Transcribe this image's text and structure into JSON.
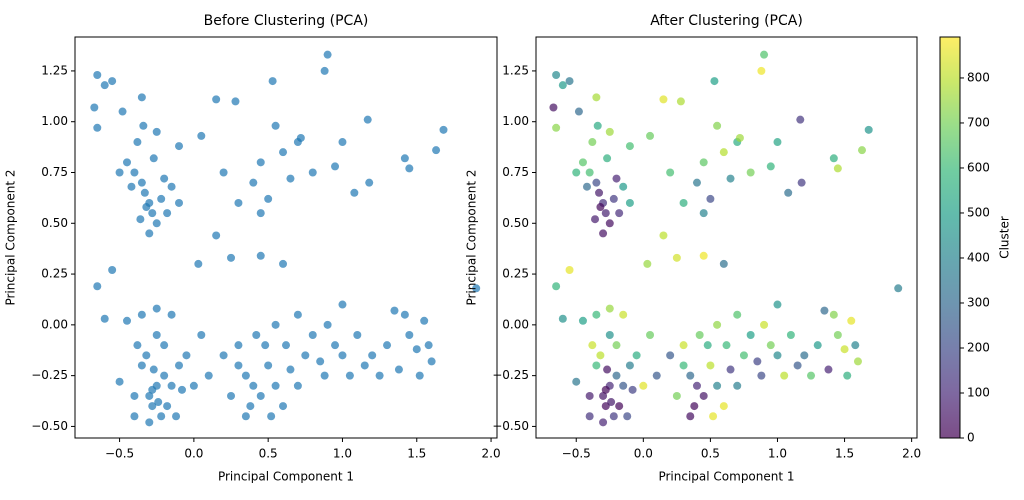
{
  "chart_data": [
    {
      "type": "scatter",
      "title": "Before Clustering (PCA)",
      "x_label": "Principal Component 1",
      "y_label": "Principal Component 2",
      "color": "#1f77b4",
      "xlim": [
        -0.8,
        2.04
      ],
      "ylim": [
        -0.557,
        1.417
      ],
      "xticks": [
        {
          "value": -0.5,
          "label": "−0.5"
        },
        {
          "value": 0,
          "label": "0.0"
        },
        0.5,
        {
          "value": 1,
          "label": "1.0"
        },
        1.5,
        {
          "value": 2,
          "label": "2.0"
        }
      ],
      "yticks": [
        {
          "value": -0.5,
          "label": "−0.50"
        },
        {
          "value": -0.25,
          "label": "−0.25"
        },
        {
          "value": 0,
          "label": "0.00"
        },
        0.25,
        {
          "value": 0.5,
          "label": "0.50"
        },
        0.75,
        {
          "value": 1,
          "label": "1.00"
        },
        1.25
      ],
      "x": [
        -0.3,
        -0.28,
        -0.33,
        -0.25,
        -0.35,
        -0.22,
        -0.3,
        -0.4,
        -0.45,
        -0.38,
        -0.2,
        -0.27,
        -0.32,
        -0.36,
        -0.18,
        -0.42,
        -0.5,
        -0.15,
        -0.25,
        -0.34,
        -0.65,
        -0.6,
        -0.55,
        -0.67,
        -0.65,
        -0.48,
        -0.35,
        -0.1,
        0.05,
        0.15,
        0.28,
        0.45,
        0.55,
        0.6,
        0.4,
        0.5,
        0.3,
        0.45,
        0.7,
        0.8,
        0.88,
        0.9,
        0.95,
        1.0,
        1.08,
        1.17,
        1.42,
        1.45,
        1.63,
        1.68,
        0.53,
        0.03,
        0.15,
        0.25,
        0.45,
        0.6,
        -0.1,
        0.2,
        0.65,
        1.18,
        0.72,
        -0.25,
        -0.3,
        -0.2,
        -0.28,
        -0.22,
        -0.35,
        -0.15,
        -0.32,
        -0.25,
        -0.4,
        -0.18,
        -0.1,
        -0.27,
        -0.38,
        -0.45,
        -0.3,
        -0.2,
        -0.05,
        0.0,
        -0.12,
        -0.4,
        -0.5,
        -0.35,
        -0.25,
        -0.15,
        -0.6,
        -0.65,
        -0.55,
        -0.28,
        -0.24,
        0.05,
        0.1,
        -0.08,
        0.35,
        0.4,
        0.3,
        0.45,
        0.5,
        0.38,
        0.55,
        0.25,
        0.3,
        0.48,
        0.6,
        0.2,
        0.65,
        0.42,
        0.7,
        0.75,
        0.8,
        0.88,
        0.95,
        1.0,
        1.05,
        1.1,
        1.2,
        1.25,
        1.3,
        1.38,
        1.42,
        1.5,
        1.58,
        1.6,
        1.52,
        1.35,
        1.0,
        0.9,
        0.7,
        0.55,
        1.55,
        1.9,
        0.35,
        0.52,
        1.45,
        0.85,
        0.62,
        1.15
      ],
      "values": [
        0.6,
        0.55,
        0.65,
        0.5,
        0.7,
        0.62,
        0.45,
        0.75,
        0.8,
        0.9,
        0.72,
        0.82,
        0.58,
        0.52,
        0.55,
        0.68,
        0.75,
        0.68,
        0.95,
        0.98,
        1.23,
        1.18,
        1.2,
        1.07,
        0.97,
        1.05,
        1.12,
        0.88,
        0.93,
        1.11,
        1.1,
        0.8,
        0.98,
        0.85,
        0.7,
        0.62,
        0.6,
        0.55,
        0.9,
        0.75,
        1.25,
        1.33,
        0.78,
        0.9,
        0.65,
        1.01,
        0.82,
        0.77,
        0.86,
        0.96,
        1.2,
        0.3,
        0.44,
        0.33,
        0.34,
        0.3,
        0.6,
        0.75,
        0.72,
        0.7,
        0.92,
        -0.3,
        -0.35,
        -0.25,
        -0.4,
        -0.45,
        -0.2,
        -0.3,
        -0.15,
        -0.05,
        -0.35,
        -0.4,
        -0.2,
        -0.22,
        -0.1,
        0.02,
        -0.48,
        -0.1,
        -0.15,
        -0.3,
        -0.45,
        -0.45,
        -0.28,
        0.05,
        0.08,
        0.05,
        0.03,
        0.19,
        0.27,
        -0.32,
        -0.38,
        -0.05,
        -0.25,
        -0.32,
        -0.25,
        -0.3,
        -0.2,
        -0.35,
        -0.2,
        -0.4,
        -0.3,
        -0.35,
        -0.1,
        -0.1,
        -0.4,
        -0.15,
        -0.22,
        -0.05,
        -0.3,
        -0.15,
        -0.05,
        -0.25,
        -0.1,
        -0.15,
        -0.25,
        -0.05,
        -0.15,
        -0.25,
        -0.1,
        -0.22,
        0.05,
        -0.12,
        -0.1,
        -0.18,
        -0.25,
        0.07,
        0.1,
        0.0,
        0.05,
        0.0,
        0.02,
        0.18,
        -0.45,
        -0.45,
        -0.05,
        -0.18,
        -0.1,
        -0.2
      ]
    },
    {
      "type": "scatter",
      "title": "After Clustering (PCA)",
      "x_label": "Principal Component 1",
      "y_label": "Principal Component 2",
      "colormap": "viridis",
      "colorbar_label": "Cluster",
      "clim": [
        0,
        891
      ],
      "cticks": [
        0,
        100,
        200,
        300,
        400,
        500,
        600,
        700,
        800
      ],
      "xlim": [
        -0.8,
        2.04
      ],
      "ylim": [
        -0.557,
        1.417
      ],
      "xticks": [
        {
          "value": -0.5,
          "label": "−0.5"
        },
        {
          "value": 0,
          "label": "0.0"
        },
        0.5,
        {
          "value": 1,
          "label": "1.0"
        },
        1.5,
        {
          "value": 2,
          "label": "2.0"
        }
      ],
      "yticks": [
        {
          "value": -0.5,
          "label": "−0.50"
        },
        {
          "value": -0.25,
          "label": "−0.25"
        },
        {
          "value": 0,
          "label": "0.00"
        },
        0.25,
        {
          "value": 0.5,
          "label": "0.50"
        },
        0.75,
        {
          "value": 1,
          "label": "1.00"
        },
        1.25
      ],
      "x": [
        -0.3,
        -0.28,
        -0.33,
        -0.25,
        -0.35,
        -0.22,
        -0.3,
        -0.4,
        -0.45,
        -0.38,
        -0.2,
        -0.27,
        -0.32,
        -0.36,
        -0.18,
        -0.42,
        -0.5,
        -0.15,
        -0.25,
        -0.34,
        -0.65,
        -0.6,
        -0.55,
        -0.67,
        -0.65,
        -0.48,
        -0.35,
        -0.1,
        0.05,
        0.15,
        0.28,
        0.45,
        0.55,
        0.6,
        0.4,
        0.5,
        0.3,
        0.45,
        0.7,
        0.8,
        0.88,
        0.9,
        0.95,
        1.0,
        1.08,
        1.17,
        1.42,
        1.45,
        1.63,
        1.68,
        0.53,
        0.03,
        0.15,
        0.25,
        0.45,
        0.6,
        -0.1,
        0.2,
        0.65,
        1.18,
        0.72,
        -0.25,
        -0.3,
        -0.2,
        -0.28,
        -0.22,
        -0.35,
        -0.15,
        -0.32,
        -0.25,
        -0.4,
        -0.18,
        -0.1,
        -0.27,
        -0.38,
        -0.45,
        -0.3,
        -0.2,
        -0.05,
        0.0,
        -0.12,
        -0.4,
        -0.5,
        -0.35,
        -0.25,
        -0.15,
        -0.6,
        -0.65,
        -0.55,
        -0.28,
        -0.24,
        0.05,
        0.1,
        -0.08,
        0.35,
        0.4,
        0.3,
        0.45,
        0.5,
        0.38,
        0.55,
        0.25,
        0.3,
        0.48,
        0.6,
        0.2,
        0.65,
        0.42,
        0.7,
        0.75,
        0.8,
        0.88,
        0.95,
        1.0,
        1.05,
        1.1,
        1.2,
        1.25,
        1.3,
        1.38,
        1.42,
        1.5,
        1.58,
        1.6,
        1.52,
        1.35,
        1.0,
        0.9,
        0.7,
        0.55,
        1.55,
        1.9,
        0.35,
        0.52,
        1.45,
        0.85,
        0.62,
        1.15
      ],
      "values": [
        0.6,
        0.55,
        0.65,
        0.5,
        0.7,
        0.62,
        0.45,
        0.75,
        0.8,
        0.9,
        0.72,
        0.82,
        0.58,
        0.52,
        0.55,
        0.68,
        0.75,
        0.68,
        0.95,
        0.98,
        1.23,
        1.18,
        1.2,
        1.07,
        0.97,
        1.05,
        1.12,
        0.88,
        0.93,
        1.11,
        1.1,
        0.8,
        0.98,
        0.85,
        0.7,
        0.62,
        0.6,
        0.55,
        0.9,
        0.75,
        1.25,
        1.33,
        0.78,
        0.9,
        0.65,
        1.01,
        0.82,
        0.77,
        0.86,
        0.96,
        1.2,
        0.3,
        0.44,
        0.33,
        0.34,
        0.3,
        0.6,
        0.75,
        0.72,
        0.7,
        0.92,
        -0.3,
        -0.35,
        -0.25,
        -0.4,
        -0.45,
        -0.2,
        -0.3,
        -0.15,
        -0.05,
        -0.35,
        -0.4,
        -0.2,
        -0.22,
        -0.1,
        0.02,
        -0.48,
        -0.1,
        -0.15,
        -0.3,
        -0.45,
        -0.45,
        -0.28,
        0.05,
        0.08,
        0.05,
        0.03,
        0.19,
        0.27,
        -0.32,
        -0.38,
        -0.05,
        -0.25,
        -0.32,
        -0.25,
        -0.3,
        -0.2,
        -0.35,
        -0.2,
        -0.4,
        -0.3,
        -0.35,
        -0.1,
        -0.1,
        -0.4,
        -0.15,
        -0.22,
        -0.05,
        -0.3,
        -0.15,
        -0.05,
        -0.25,
        -0.1,
        -0.15,
        -0.25,
        -0.05,
        -0.15,
        -0.25,
        -0.1,
        -0.22,
        0.05,
        -0.12,
        -0.1,
        -0.18,
        -0.25,
        0.07,
        0.1,
        0.0,
        0.05,
        0.0,
        0.02,
        0.18,
        -0.45,
        -0.45,
        -0.05,
        -0.18,
        -0.1,
        -0.2
      ],
      "color_values": [
        120,
        80,
        60,
        30,
        200,
        150,
        40,
        620,
        650,
        700,
        90,
        560,
        20,
        70,
        110,
        310,
        580,
        480,
        760,
        540,
        420,
        480,
        350,
        40,
        730,
        300,
        770,
        620,
        680,
        850,
        780,
        660,
        720,
        790,
        350,
        200,
        560,
        400,
        550,
        700,
        870,
        640,
        580,
        520,
        320,
        140,
        560,
        780,
        730,
        460,
        500,
        750,
        800,
        830,
        870,
        330,
        500,
        620,
        400,
        150,
        760,
        100,
        50,
        300,
        20,
        150,
        600,
        250,
        800,
        450,
        70,
        10,
        380,
        40,
        820,
        500,
        90,
        700,
        550,
        850,
        200,
        130,
        350,
        600,
        750,
        820,
        450,
        580,
        860,
        15,
        60,
        680,
        250,
        170,
        300,
        100,
        600,
        50,
        800,
        20,
        400,
        700,
        820,
        550,
        860,
        250,
        150,
        680,
        380,
        620,
        500,
        200,
        700,
        420,
        800,
        580,
        320,
        650,
        480,
        90,
        720,
        820,
        400,
        760,
        560,
        300,
        460,
        820,
        640,
        740,
        860,
        380,
        30,
        860,
        700,
        180,
        600,
        250
      ]
    }
  ]
}
